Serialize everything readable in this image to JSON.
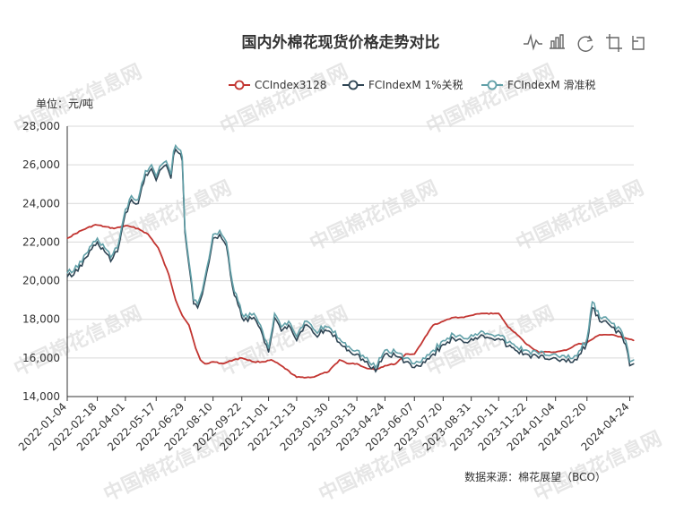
{
  "chart_data": {
    "type": "line",
    "title": "国内外棉花现货价格走势对比",
    "ylabel": "单位：元/吨",
    "source": "数据来源：棉花展望（BCO）",
    "watermark": "中国棉花信息网",
    "ylim": [
      14000,
      28000
    ],
    "yticks": [
      "14,000",
      "16,000",
      "18,000",
      "20,000",
      "22,000",
      "24,000",
      "26,000",
      "28,000"
    ],
    "xticks": [
      "2022-01-04",
      "2022-02-18",
      "2022-04-01",
      "2022-05-17",
      "2022-06-29",
      "2022-08-10",
      "2022-09-22",
      "2022-11-01",
      "2022-12-13",
      "2023-01-30",
      "2023-03-13",
      "2023-04-24",
      "2023-06-07",
      "2023-07-20",
      "2023-08-31",
      "2023-10-11",
      "2023-11-22",
      "2024-01-04",
      "2024-02-20",
      "2024-04-24"
    ],
    "x_start": "2022-01-04",
    "x_end": "2024-04-30",
    "legend_position": "top-right",
    "grid": true,
    "series": [
      {
        "name": "CCIndex3128",
        "color": "#c23531",
        "x": [
          "2022-01-04",
          "2022-01-25",
          "2022-02-15",
          "2022-03-01",
          "2022-03-15",
          "2022-04-01",
          "2022-04-20",
          "2022-05-05",
          "2022-05-20",
          "2022-06-05",
          "2022-06-15",
          "2022-06-25",
          "2022-07-05",
          "2022-07-15",
          "2022-07-22",
          "2022-07-29",
          "2022-08-10",
          "2022-08-25",
          "2022-09-10",
          "2022-09-22",
          "2022-10-10",
          "2022-10-25",
          "2022-11-05",
          "2022-11-20",
          "2022-12-13",
          "2023-01-05",
          "2023-01-30",
          "2023-02-15",
          "2023-03-01",
          "2023-03-13",
          "2023-03-25",
          "2023-04-10",
          "2023-04-24",
          "2023-05-10",
          "2023-05-25",
          "2023-06-07",
          "2023-06-20",
          "2023-07-05",
          "2023-07-20",
          "2023-08-05",
          "2023-08-20",
          "2023-08-31",
          "2023-09-15",
          "2023-10-11",
          "2023-10-25",
          "2023-11-05",
          "2023-11-22",
          "2023-12-10",
          "2024-01-04",
          "2024-01-20",
          "2024-02-05",
          "2024-02-20",
          "2024-03-10",
          "2024-03-25",
          "2024-04-10",
          "2024-04-20",
          "2024-04-30"
        ],
        "values": [
          22200,
          22600,
          22900,
          22800,
          22700,
          22850,
          22700,
          22400,
          21700,
          20300,
          19000,
          18200,
          17700,
          16500,
          15900,
          15700,
          15800,
          15700,
          15900,
          16000,
          15800,
          15800,
          15900,
          15600,
          15000,
          15000,
          15300,
          15900,
          15700,
          15700,
          15500,
          15400,
          15600,
          15700,
          16200,
          16200,
          16900,
          17700,
          17900,
          18100,
          18100,
          18200,
          18300,
          18300,
          17600,
          17300,
          16700,
          16300,
          16300,
          16400,
          16700,
          16800,
          17200,
          17200,
          17100,
          17000,
          16900
        ]
      },
      {
        "name": "FCIndexM 1%关税",
        "color": "#2f4554",
        "x": [
          "2022-01-04",
          "2022-01-20",
          "2022-02-01",
          "2022-02-18",
          "2022-03-01",
          "2022-03-10",
          "2022-03-20",
          "2022-04-01",
          "2022-04-10",
          "2022-04-20",
          "2022-05-01",
          "2022-05-10",
          "2022-05-17",
          "2022-05-25",
          "2022-06-01",
          "2022-06-08",
          "2022-06-12",
          "2022-06-15",
          "2022-06-20",
          "2022-06-25",
          "2022-06-29",
          "2022-07-05",
          "2022-07-12",
          "2022-07-18",
          "2022-07-25",
          "2022-08-01",
          "2022-08-10",
          "2022-08-20",
          "2022-08-30",
          "2022-09-08",
          "2022-09-22",
          "2022-10-01",
          "2022-10-10",
          "2022-10-20",
          "2022-11-01",
          "2022-11-10",
          "2022-11-20",
          "2022-12-01",
          "2022-12-13",
          "2022-12-25",
          "2023-01-10",
          "2023-01-30",
          "2023-02-15",
          "2023-03-01",
          "2023-03-13",
          "2023-03-25",
          "2023-04-10",
          "2023-04-24",
          "2023-05-10",
          "2023-05-25",
          "2023-06-07",
          "2023-06-20",
          "2023-07-05",
          "2023-07-20",
          "2023-08-05",
          "2023-08-20",
          "2023-08-31",
          "2023-09-15",
          "2023-10-11",
          "2023-10-25",
          "2023-11-05",
          "2023-11-22",
          "2023-12-10",
          "2024-01-04",
          "2024-01-20",
          "2024-02-05",
          "2024-02-20",
          "2024-02-28",
          "2024-03-10",
          "2024-03-25",
          "2024-04-10",
          "2024-04-18",
          "2024-04-24",
          "2024-04-30"
        ],
        "values": [
          20200,
          20500,
          21200,
          22000,
          21500,
          21000,
          21500,
          23500,
          24200,
          24000,
          25500,
          25800,
          25200,
          25800,
          26000,
          25300,
          26500,
          26800,
          26600,
          26200,
          22500,
          20800,
          18800,
          18600,
          19300,
          20500,
          22200,
          22400,
          21800,
          19700,
          18100,
          17900,
          18100,
          17500,
          16300,
          18100,
          17400,
          17700,
          16900,
          17700,
          17200,
          17400,
          16800,
          16400,
          16200,
          15800,
          15300,
          16200,
          16100,
          15800,
          15500,
          15800,
          16200,
          16700,
          17000,
          16800,
          17000,
          17200,
          17000,
          16600,
          16400,
          16200,
          16000,
          16000,
          15800,
          15900,
          16800,
          18600,
          17900,
          17700,
          17300,
          16700,
          15600,
          15700
        ]
      },
      {
        "name": "FCIndexM 滑准税",
        "color": "#61a0a8",
        "x": [
          "2022-01-04",
          "2022-01-20",
          "2022-02-01",
          "2022-02-18",
          "2022-03-01",
          "2022-03-10",
          "2022-03-20",
          "2022-04-01",
          "2022-04-10",
          "2022-04-20",
          "2022-05-01",
          "2022-05-10",
          "2022-05-17",
          "2022-05-25",
          "2022-06-01",
          "2022-06-08",
          "2022-06-12",
          "2022-06-15",
          "2022-06-20",
          "2022-06-25",
          "2022-06-29",
          "2022-07-05",
          "2022-07-12",
          "2022-07-18",
          "2022-07-25",
          "2022-08-01",
          "2022-08-10",
          "2022-08-20",
          "2022-08-30",
          "2022-09-08",
          "2022-09-22",
          "2022-10-01",
          "2022-10-10",
          "2022-10-20",
          "2022-11-01",
          "2022-11-10",
          "2022-11-20",
          "2022-12-01",
          "2022-12-13",
          "2022-12-25",
          "2023-01-10",
          "2023-01-30",
          "2023-02-15",
          "2023-03-01",
          "2023-03-13",
          "2023-03-25",
          "2023-04-10",
          "2023-04-24",
          "2023-05-10",
          "2023-05-25",
          "2023-06-07",
          "2023-06-20",
          "2023-07-05",
          "2023-07-20",
          "2023-08-05",
          "2023-08-20",
          "2023-08-31",
          "2023-09-15",
          "2023-10-11",
          "2023-10-25",
          "2023-11-05",
          "2023-11-22",
          "2023-12-10",
          "2024-01-04",
          "2024-01-20",
          "2024-02-05",
          "2024-02-20",
          "2024-02-28",
          "2024-03-10",
          "2024-03-25",
          "2024-04-10",
          "2024-04-18",
          "2024-04-24",
          "2024-04-30"
        ],
        "values": [
          20400,
          20700,
          21400,
          22200,
          21700,
          21200,
          21700,
          23700,
          24400,
          24200,
          25700,
          26000,
          25400,
          26000,
          26200,
          25500,
          26700,
          27000,
          26800,
          26400,
          22700,
          21000,
          19000,
          18800,
          19500,
          20700,
          22400,
          22600,
          22000,
          19900,
          18300,
          18100,
          18300,
          17700,
          16500,
          18300,
          17600,
          17900,
          17100,
          17900,
          17400,
          17600,
          17000,
          16600,
          16400,
          16000,
          15500,
          16400,
          16300,
          16000,
          15700,
          16000,
          16400,
          16900,
          17200,
          17000,
          17200,
          17400,
          17200,
          16800,
          16600,
          16400,
          16200,
          16200,
          16000,
          16100,
          17000,
          18900,
          18100,
          17900,
          17500,
          16900,
          15800,
          15900
        ]
      }
    ]
  },
  "toolbox": {
    "items": [
      "line-chart-icon",
      "bar-chart-icon",
      "restore-icon",
      "crop-icon",
      "back-icon"
    ]
  }
}
